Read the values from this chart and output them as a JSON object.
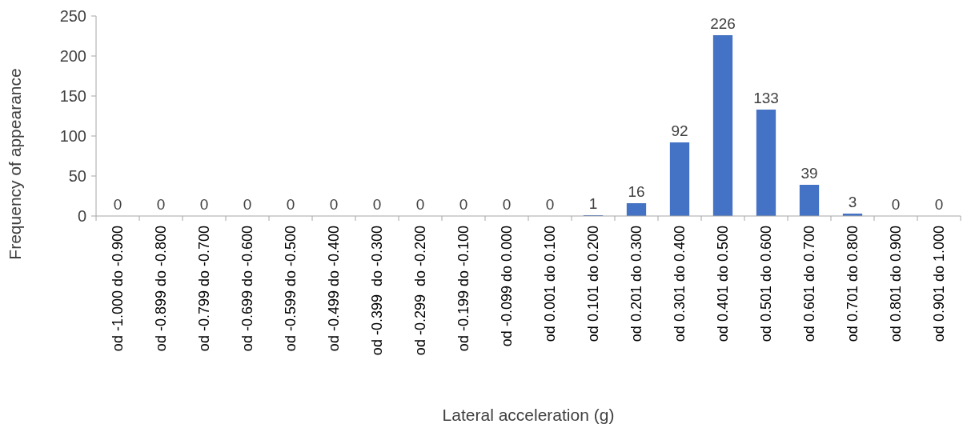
{
  "chart_data": {
    "type": "bar",
    "xlabel": "Lateral acceleration (g)",
    "ylabel": "Frequency of appearance",
    "categories": [
      "od -1.000 do -0.900",
      "od -0.899 do -0.800",
      "od -0.799 do -0.700",
      "od -0.699 do -0.600",
      "od -0.599 do -0.500",
      "od -0.499 do -0.400",
      "od -0.399  do -0.300",
      "od -0.299  do -0.200",
      "od -0.199 do -0.100",
      "od -0.099 do 0.000",
      "od 0.001 do 0.100",
      "od 0.101 do 0.200",
      "od 0.201 do 0.300",
      "od 0.301 do 0.400",
      "od 0.401 do 0.500",
      "od 0.501 do 0.600",
      "od 0.601 do 0.700",
      "od 0.701 do 0.800",
      "od 0.801 do 0.900",
      "od 0.901 do 1.000"
    ],
    "values": [
      0,
      0,
      0,
      0,
      0,
      0,
      0,
      0,
      0,
      0,
      0,
      1,
      16,
      92,
      226,
      133,
      39,
      3,
      0,
      0
    ],
    "color": "#4472c4",
    "ylim": [
      0,
      250
    ],
    "yticks": [
      0,
      50,
      100,
      150,
      200,
      250
    ],
    "data_labels": true,
    "grid": false
  }
}
